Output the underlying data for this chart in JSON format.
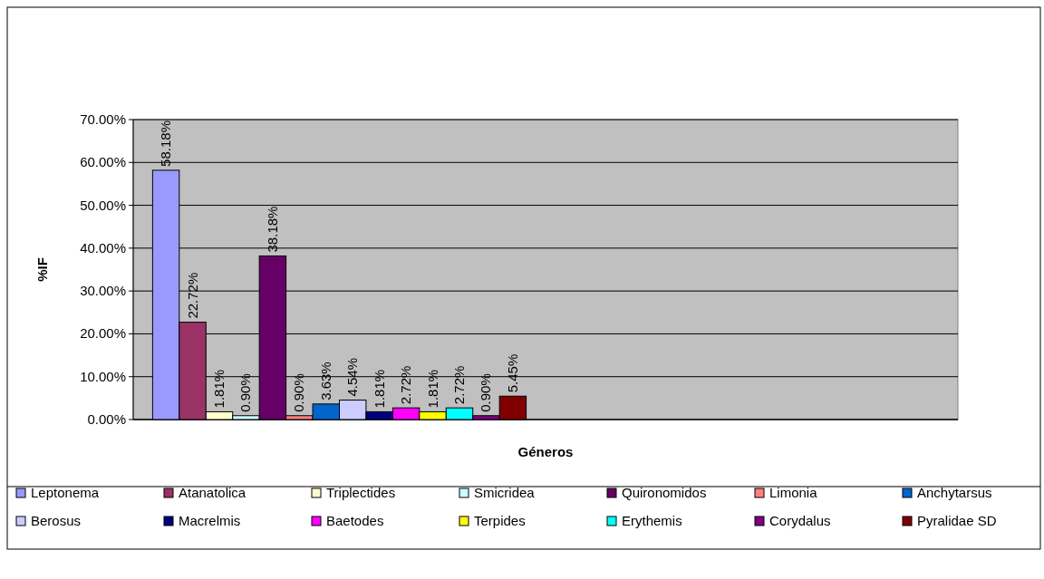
{
  "chart_data": {
    "type": "bar",
    "xlabel": "Géneros",
    "ylabel": "%IF",
    "categories": [
      null,
      null
    ],
    "ylim": [
      0,
      70
    ],
    "yticks": [
      {
        "value": 0,
        "label": "0.00%"
      },
      {
        "value": 10,
        "label": "10.00%"
      },
      {
        "value": 20,
        "label": "20.00%"
      },
      {
        "value": 30,
        "label": "30.00%"
      },
      {
        "value": 40,
        "label": "40.00%"
      },
      {
        "value": 50,
        "label": "50.00%"
      },
      {
        "value": 60,
        "label": "60.00%"
      },
      {
        "value": 70,
        "label": "70.00%"
      }
    ],
    "grid": "y",
    "legend": "bottom",
    "series": [
      {
        "name": "Leptonema",
        "color": "#9999ff",
        "values": [
          58.18,
          null
        ],
        "value_labels": [
          "58.18%",
          null
        ]
      },
      {
        "name": "Atanatolica",
        "color": "#993366",
        "values": [
          22.72,
          null
        ],
        "value_labels": [
          "22.72%",
          null
        ]
      },
      {
        "name": "Triplectides",
        "color": "#ffffcc",
        "values": [
          1.81,
          null
        ],
        "value_labels": [
          "1.81%",
          null
        ]
      },
      {
        "name": "Smicridea",
        "color": "#ccffff",
        "values": [
          0.9,
          null
        ],
        "value_labels": [
          "0.90%",
          null
        ]
      },
      {
        "name": "Quironomidos",
        "color": "#660066",
        "values": [
          38.18,
          null
        ],
        "value_labels": [
          "38.18%",
          null
        ]
      },
      {
        "name": "Limonia",
        "color": "#ff8080",
        "values": [
          0.9,
          null
        ],
        "value_labels": [
          "0.90%",
          null
        ]
      },
      {
        "name": "Anchytarsus",
        "color": "#0066cc",
        "values": [
          3.63,
          null
        ],
        "value_labels": [
          "3.63%",
          null
        ]
      },
      {
        "name": "Berosus",
        "color": "#ccccff",
        "values": [
          4.54,
          null
        ],
        "value_labels": [
          "4.54%",
          null
        ]
      },
      {
        "name": "Macrelmis",
        "color": "#000080",
        "values": [
          1.81,
          null
        ],
        "value_labels": [
          "1.81%",
          null
        ]
      },
      {
        "name": "Baetodes",
        "color": "#ff00ff",
        "values": [
          2.72,
          null
        ],
        "value_labels": [
          "2.72%",
          null
        ]
      },
      {
        "name": "Terpides",
        "color": "#ffff00",
        "values": [
          1.81,
          null
        ],
        "value_labels": [
          "1.81%",
          null
        ]
      },
      {
        "name": "Erythemis",
        "color": "#00ffff",
        "values": [
          2.72,
          null
        ],
        "value_labels": [
          "2.72%",
          null
        ]
      },
      {
        "name": "Corydalus",
        "color": "#800080",
        "values": [
          0.9,
          null
        ],
        "value_labels": [
          "0.90%",
          null
        ]
      },
      {
        "name": "Pyralidae SD",
        "color": "#800000",
        "values": [
          5.45,
          null
        ],
        "value_labels": [
          "5.45%",
          null
        ]
      }
    ]
  }
}
